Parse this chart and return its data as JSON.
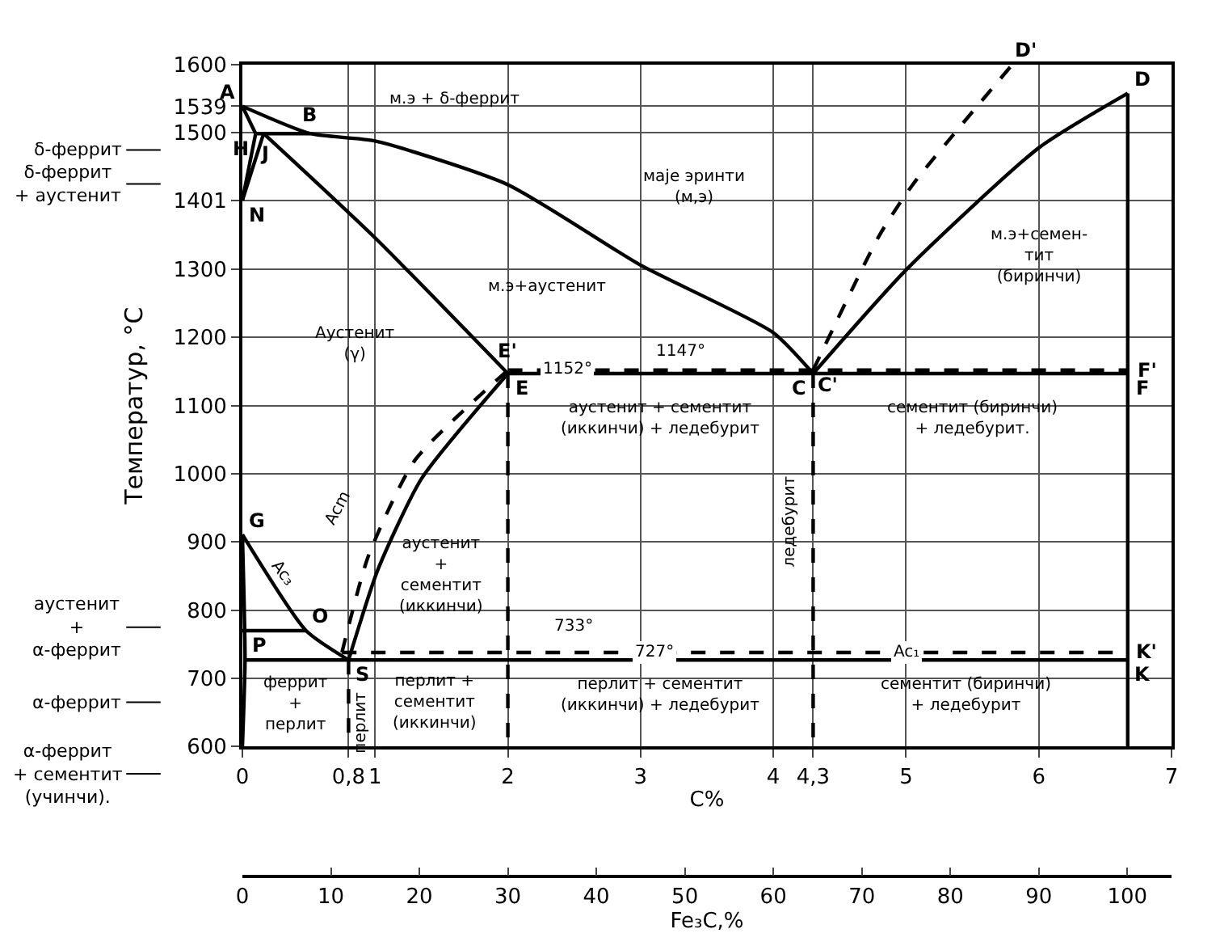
{
  "chart_data": {
    "type": "line",
    "xlabel": "C%",
    "x2label": "Fe₃C,%",
    "ylabel": "Температур, °С",
    "xlim": [
      0,
      7
    ],
    "ylim": [
      600,
      1600
    ],
    "x2lim": [
      0,
      105
    ],
    "xticks": [
      0,
      {
        "value": 0.8,
        "label": "0,8"
      },
      1,
      2,
      3,
      4,
      {
        "value": 4.3,
        "label": "4,3"
      },
      5,
      6,
      7
    ],
    "x2ticks": [
      0,
      10,
      20,
      30,
      40,
      50,
      60,
      70,
      80,
      90,
      100
    ],
    "yticks": [
      600,
      700,
      800,
      900,
      1000,
      1100,
      1200,
      1300,
      1401,
      1500,
      1539,
      1600
    ],
    "grid": true,
    "marker": "none",
    "series": [
      {
        "color": "#000000",
        "line_style": "solid",
        "x": [
          0,
          0.51,
          1,
          2,
          3,
          4,
          4.3
        ],
        "values": [
          1539,
          1499,
          1488,
          1424,
          1306,
          1207,
          1147
        ]
      },
      {
        "color": "#000000",
        "line_style": "solid",
        "x": [
          4.3,
          5,
          6,
          6.67
        ],
        "values": [
          1147,
          1299,
          1478,
          1558
        ]
      },
      {
        "color": "#000000",
        "line_style": "dashed",
        "x": [
          4.3,
          4.8,
          5.05,
          5.8
        ],
        "values": [
          1152,
          1350,
          1424,
          1600
        ]
      },
      {
        "color": "#000000",
        "line_style": "solid",
        "x": [
          0,
          0.1
        ],
        "values": [
          1539,
          1499
        ]
      },
      {
        "color": "#000000",
        "line_style": "solid",
        "x": [
          0.1,
          0.51
        ],
        "values": [
          1499,
          1499
        ]
      },
      {
        "color": "#000000",
        "line_style": "solid",
        "x": [
          0.1,
          0
        ],
        "values": [
          1499,
          1401
        ]
      },
      {
        "color": "#000000",
        "line_style": "solid",
        "x": [
          0.16,
          0
        ],
        "values": [
          1499,
          1401
        ]
      },
      {
        "color": "#000000",
        "line_style": "solid",
        "x": [
          0.16,
          1,
          2
        ],
        "values": [
          1499,
          1346,
          1147
        ]
      },
      {
        "color": "#000000",
        "line_style": "solid",
        "x": [
          2,
          6.67
        ],
        "values": [
          1147,
          1147
        ]
      },
      {
        "color": "#000000",
        "line_style": "dashed",
        "x": [
          2,
          6.67
        ],
        "values": [
          1152,
          1152
        ]
      },
      {
        "color": "#000000",
        "line_style": "solid",
        "x": [
          6.67,
          6.67
        ],
        "values": [
          1558,
          600
        ]
      },
      {
        "color": "#000000",
        "line_style": "solid",
        "x": [
          0,
          0.48,
          0.8
        ],
        "values": [
          911,
          770,
          727
        ]
      },
      {
        "color": "#000000",
        "line_style": "solid",
        "x": [
          0.8,
          1.02,
          1.35,
          2
        ],
        "values": [
          727,
          859,
          993,
          1147
        ]
      },
      {
        "color": "#000000",
        "line_style": "dashed",
        "x": [
          0.75,
          0.95,
          1.3,
          2
        ],
        "values": [
          738,
          880,
          1020,
          1152
        ]
      },
      {
        "color": "#000000",
        "line_style": "solid",
        "x": [
          0,
          0.02,
          0
        ],
        "values": [
          911,
          727,
          600
        ]
      },
      {
        "color": "#000000",
        "line_style": "solid",
        "x": [
          0.02,
          6.67
        ],
        "values": [
          727,
          727
        ]
      },
      {
        "color": "#000000",
        "line_style": "dashed",
        "x": [
          0.75,
          6.67
        ],
        "values": [
          738,
          738
        ]
      },
      {
        "color": "#000000",
        "line_style": "solid",
        "x": [
          0,
          0.48
        ],
        "values": [
          770,
          770
        ]
      },
      {
        "color": "#000000",
        "line_style": "dashed",
        "x": [
          0.8,
          0.8
        ],
        "values": [
          727,
          600
        ]
      },
      {
        "color": "#000000",
        "line_style": "dashed",
        "x": [
          2,
          2
        ],
        "values": [
          1147,
          600
        ]
      },
      {
        "color": "#000000",
        "line_style": "dashed",
        "x": [
          4.3,
          4.3
        ],
        "values": [
          1147,
          600
        ]
      }
    ],
    "annotations": [
      {
        "text": "A",
        "x": 0,
        "y": 1539
      },
      {
        "text": "H",
        "x": 0.1,
        "y": 1499
      },
      {
        "text": "J",
        "x": 0.16,
        "y": 1499
      },
      {
        "text": "B",
        "x": 0.51,
        "y": 1499
      },
      {
        "text": "N",
        "x": 0,
        "y": 1401
      },
      {
        "text": "E'",
        "x": 2,
        "y": 1152
      },
      {
        "text": "E",
        "x": 2,
        "y": 1147
      },
      {
        "text": "C'",
        "x": 4.3,
        "y": 1152
      },
      {
        "text": "C",
        "x": 4.3,
        "y": 1147
      },
      {
        "text": "D'",
        "x": 5.8,
        "y": 1600
      },
      {
        "text": "D",
        "x": 6.67,
        "y": 1558
      },
      {
        "text": "F'",
        "x": 6.67,
        "y": 1152
      },
      {
        "text": "F",
        "x": 6.67,
        "y": 1147
      },
      {
        "text": "G",
        "x": 0,
        "y": 911
      },
      {
        "text": "O",
        "x": 0.48,
        "y": 770
      },
      {
        "text": "S",
        "x": 0.8,
        "y": 727
      },
      {
        "text": "P",
        "x": 0.02,
        "y": 727
      },
      {
        "text": "K'",
        "x": 6.67,
        "y": 738
      },
      {
        "text": "K",
        "x": 6.67,
        "y": 727
      },
      {
        "text": "1152°",
        "x": 2.45,
        "y": 1152
      },
      {
        "text": "727°",
        "x": 3.1,
        "y": 738
      },
      {
        "text": "Ac₁",
        "x": 5.0,
        "y": 738
      },
      "м.э + δ-феррит",
      "маје эринти\n(м,э)",
      "м.э+аустенит",
      "Аустенит\n(γ)",
      "1147°",
      "м.э+семен-\nтит\n(биринчи)",
      "аустенит + сементит\n(иккинчи) + ледебурит",
      "сементит (биринчи)\n+ ледебурит.",
      "ледебурит",
      "аустенит\n+\nсементит\n(иккинчи)",
      "Acm",
      "Ac₃",
      "733°",
      "перлит +\nсементит\n(иккинчи)",
      "перлит + сементит\n(иккинчи) + ледебурит",
      "сементит (биринчи)\n+ ледебурит",
      "феррит\n+\nперлит",
      "перлит",
      "δ-феррит",
      "δ-феррит\n+ аустенит",
      "аустенит\n+\nα-феррит",
      "α-феррит",
      "α-феррит\n+ сементит\n(учинчи)."
    ]
  }
}
